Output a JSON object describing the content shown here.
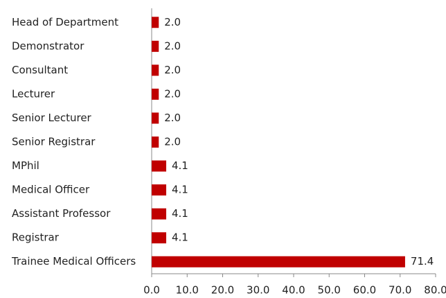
{
  "chart_data": {
    "type": "hbar",
    "categories": [
      "Head of Department",
      "Demonstrator",
      "Consultant",
      "Lecturer",
      "Senior Lecturer",
      "Senior Registrar",
      "MPhil",
      "Medical Officer",
      "Assistant Professor",
      "Registrar",
      "Trainee Medical Officers"
    ],
    "values": [
      2.0,
      2.0,
      2.0,
      2.0,
      2.0,
      2.0,
      4.1,
      4.1,
      4.1,
      4.1,
      71.4
    ],
    "value_labels": [
      "2.0",
      "2.0",
      "2.0",
      "2.0",
      "2.0",
      "2.0",
      "4.1",
      "4.1",
      "4.1",
      "4.1",
      "71.4"
    ],
    "color": "#c00000",
    "xlim": [
      0,
      80
    ],
    "xticks": [
      {
        "value": 0,
        "label": "0.0"
      },
      {
        "value": 10,
        "label": "10.0"
      },
      {
        "value": 20,
        "label": "20.0"
      },
      {
        "value": 30,
        "label": "30.0"
      },
      {
        "value": 40,
        "label": "40.0"
      },
      {
        "value": 50,
        "label": "50.0"
      },
      {
        "value": 60,
        "label": "60.0"
      },
      {
        "value": 70,
        "label": "70.0"
      },
      {
        "value": 80,
        "label": "80.0"
      }
    ],
    "grid": false
  }
}
